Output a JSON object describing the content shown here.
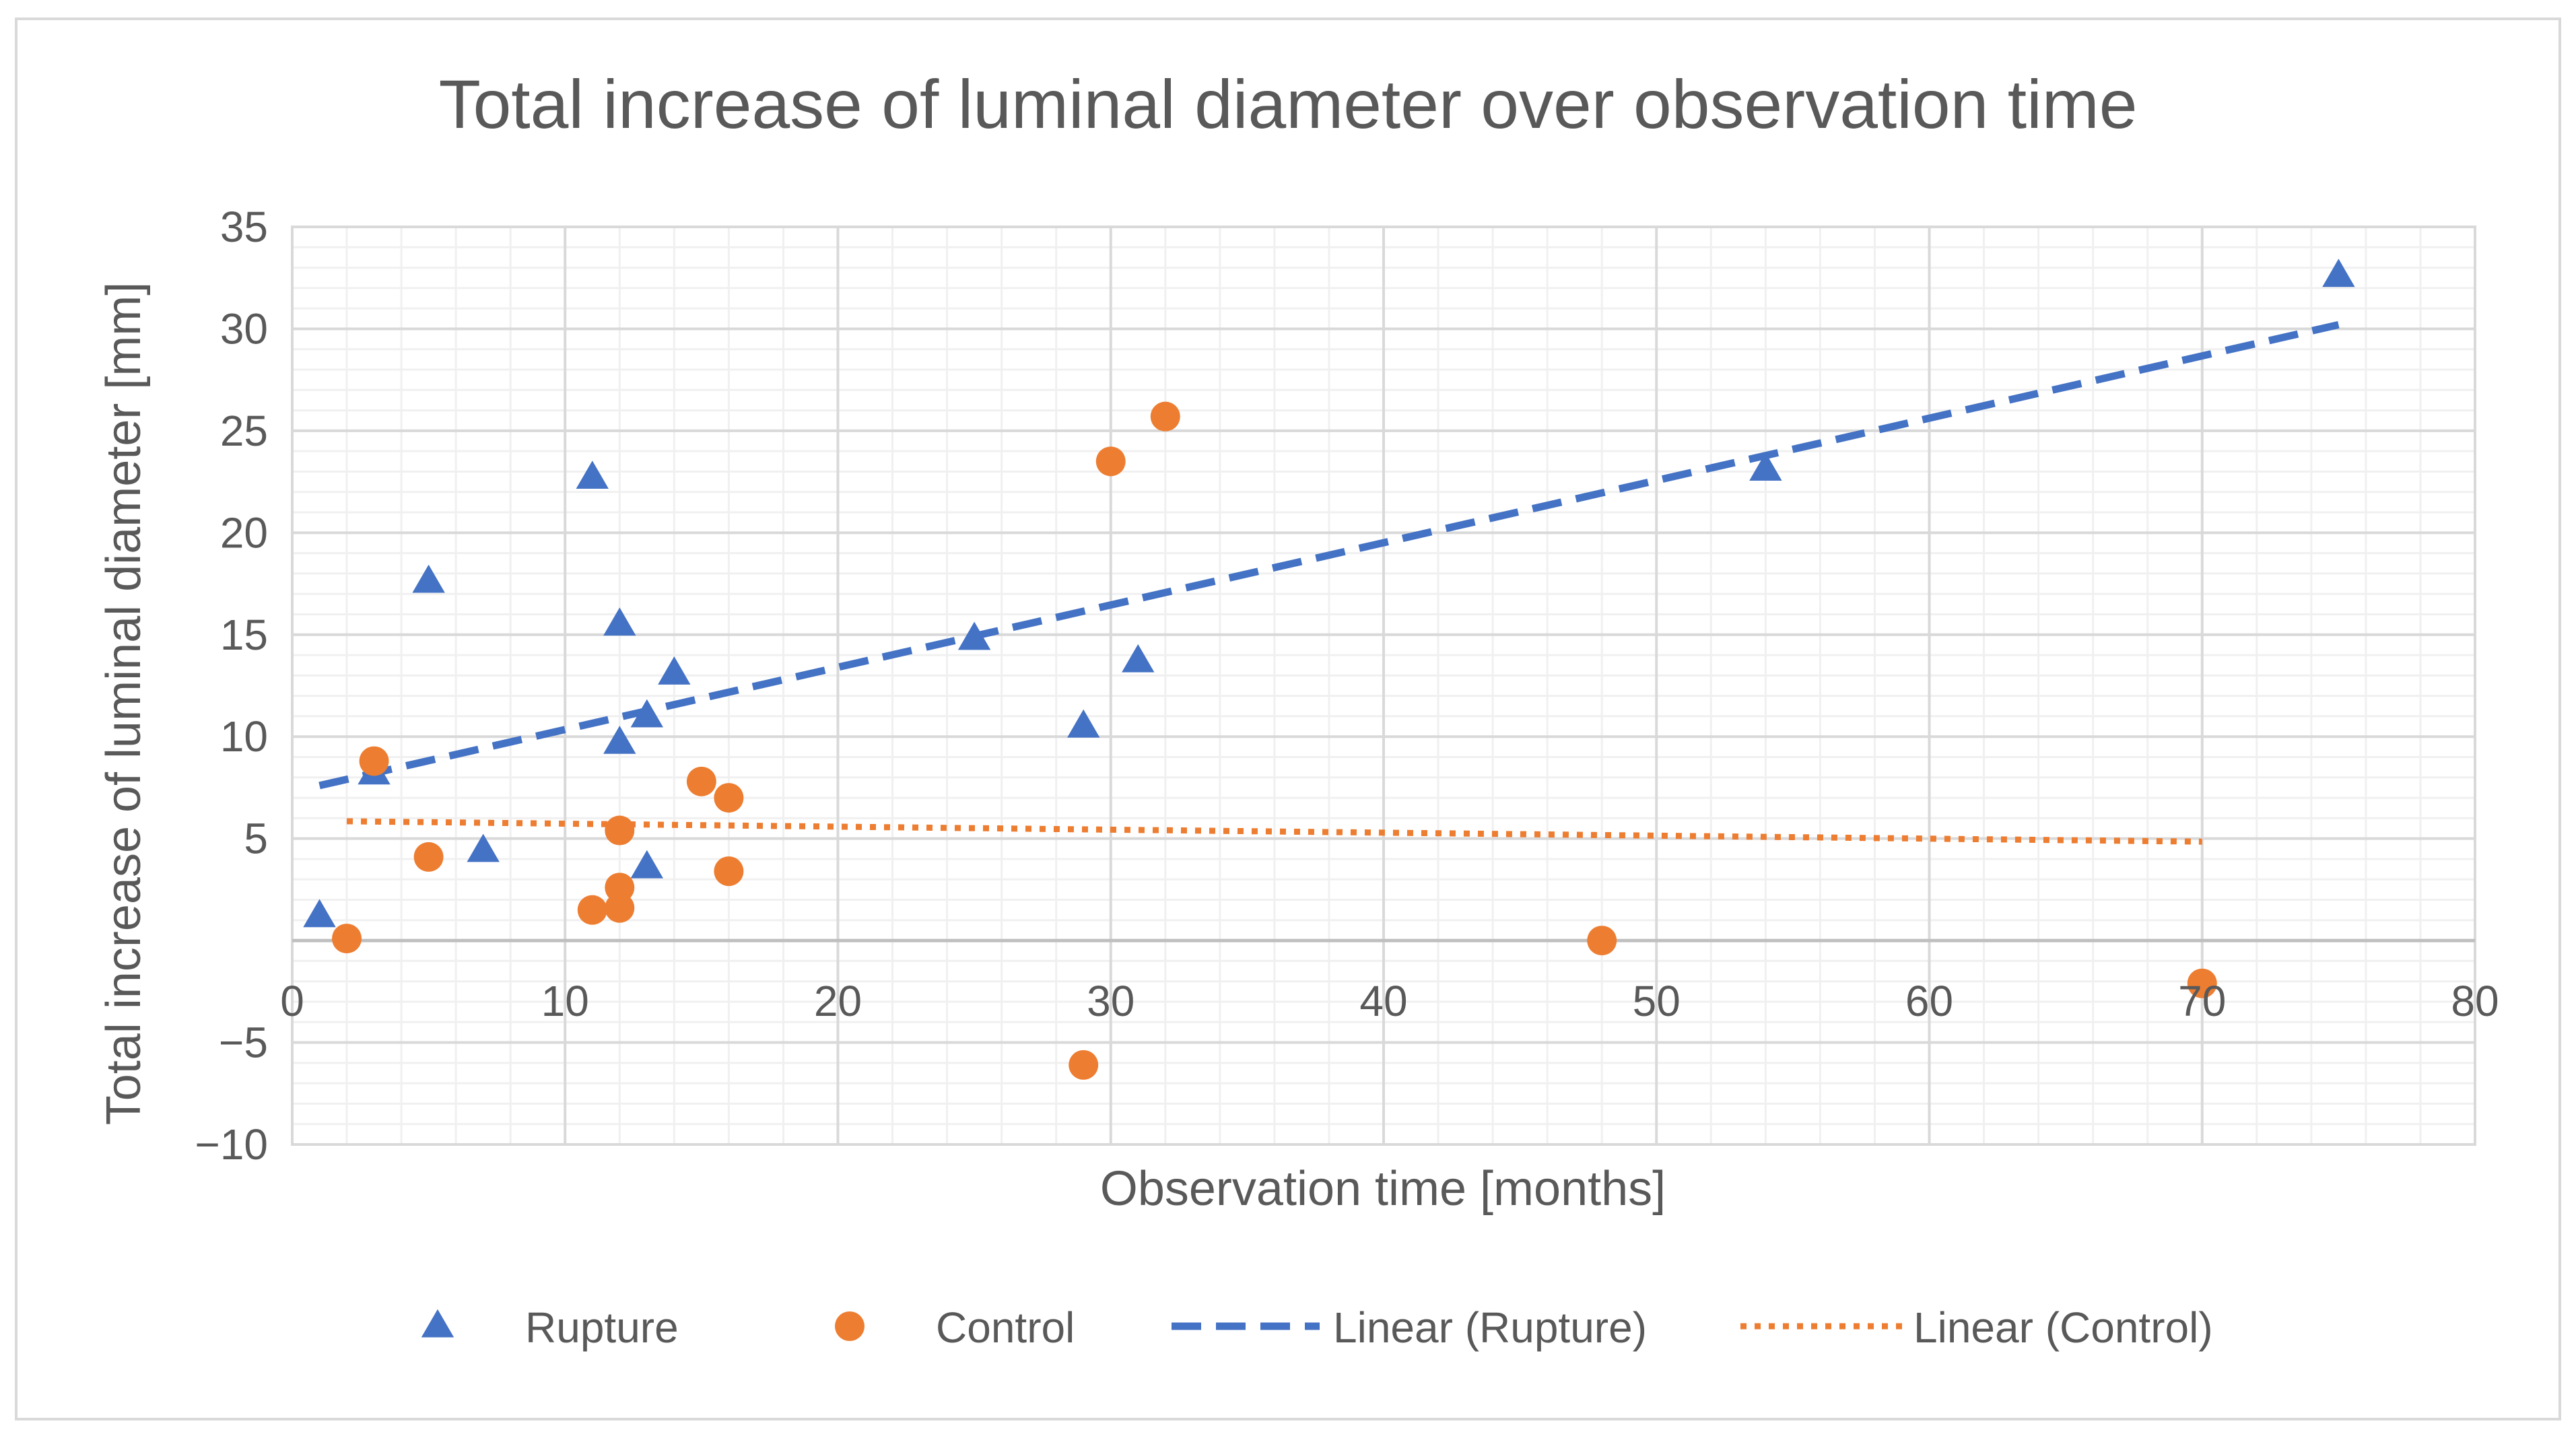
{
  "chart_data": {
    "type": "scatter",
    "title": "Total increase of luminal diameter over observation time",
    "xlabel": "Observation time [months]",
    "ylabel": "Total increase of luminal diameter [mm]",
    "xlim": [
      0,
      80
    ],
    "ylim": [
      -10,
      35
    ],
    "x_ticks": [
      0,
      10,
      20,
      30,
      40,
      50,
      60,
      70,
      80
    ],
    "y_ticks": [
      -10,
      -5,
      5,
      10,
      15,
      20,
      25,
      30,
      35
    ],
    "x_tick_labels": [
      "0",
      "10",
      "20",
      "30",
      "40",
      "50",
      "60",
      "70",
      "80"
    ],
    "y_tick_labels": [
      "−10",
      "−5",
      "5",
      "10",
      "15",
      "20",
      "25",
      "30",
      "35"
    ],
    "grid": true,
    "minor_grid": true,
    "legend_position": "bottom",
    "colors": {
      "rupture": "#4472C4",
      "control": "#ED7D31",
      "text": "#595959",
      "grid_major": "#D9D9D9",
      "grid_minor": "#F0F0F0",
      "axis": "#BFBFBF",
      "frame": "#D9D9D9"
    },
    "series": [
      {
        "name": "Rupture",
        "marker": "triangle",
        "color": "#4472C4",
        "points": [
          [
            1,
            1.2
          ],
          [
            3,
            8.2
          ],
          [
            5,
            17.6
          ],
          [
            7,
            4.4
          ],
          [
            11,
            22.7
          ],
          [
            12,
            15.5
          ],
          [
            12,
            9.7
          ],
          [
            13,
            11.0
          ],
          [
            13,
            3.6
          ],
          [
            14,
            13.1
          ],
          [
            25,
            14.8
          ],
          [
            29,
            10.5
          ],
          [
            31,
            13.7
          ],
          [
            54,
            23.1
          ],
          [
            75,
            32.6
          ]
        ]
      },
      {
        "name": "Control",
        "marker": "circle",
        "color": "#ED7D31",
        "points": [
          [
            2,
            0.1
          ],
          [
            3,
            8.8
          ],
          [
            5,
            4.1
          ],
          [
            11,
            1.5
          ],
          [
            12,
            5.4
          ],
          [
            12,
            2.6
          ],
          [
            12,
            1.6
          ],
          [
            15,
            7.8
          ],
          [
            16,
            7.0
          ],
          [
            16,
            3.4
          ],
          [
            29,
            -6.1
          ],
          [
            30,
            23.5
          ],
          [
            32,
            25.7
          ],
          [
            48,
            0.0
          ],
          [
            70,
            -2.1
          ]
        ]
      }
    ],
    "trendlines": [
      {
        "name": "Linear (Rupture)",
        "series": "Rupture",
        "style": "dashed",
        "color": "#4472C4",
        "x_range": [
          1,
          75
        ],
        "y_range": [
          7.6,
          30.2
        ]
      },
      {
        "name": "Linear (Control)",
        "series": "Control",
        "style": "dotted",
        "color": "#ED7D31",
        "x_range": [
          2,
          70
        ],
        "y_range": [
          5.85,
          4.85
        ]
      }
    ],
    "legend": [
      {
        "label": "Rupture",
        "kind": "triangle",
        "color": "#4472C4"
      },
      {
        "label": "Control",
        "kind": "circle",
        "color": "#ED7D31"
      },
      {
        "label": "Linear (Rupture)",
        "kind": "dashed",
        "color": "#4472C4"
      },
      {
        "label": "Linear (Control)",
        "kind": "dotted",
        "color": "#ED7D31"
      }
    ]
  }
}
